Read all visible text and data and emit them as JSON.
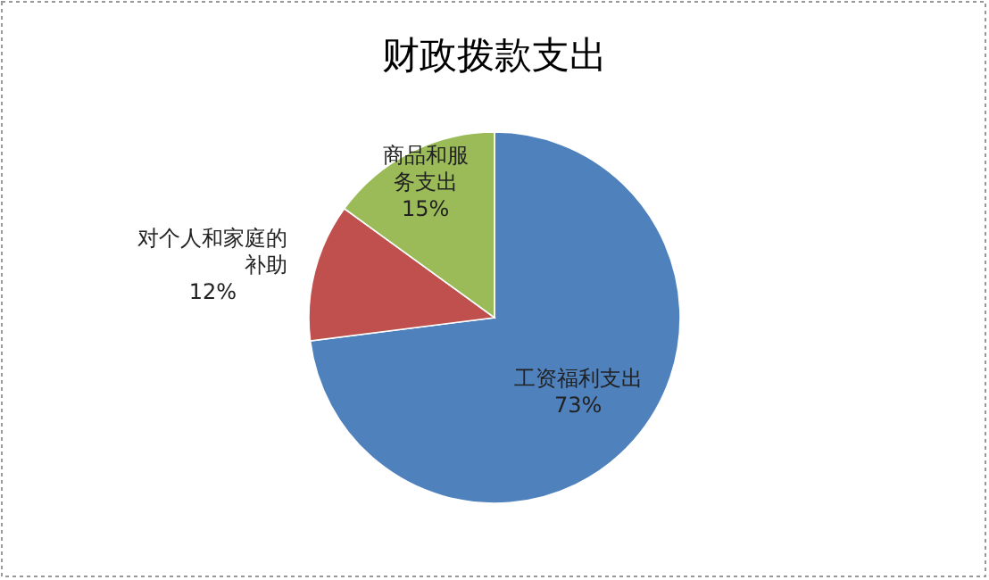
{
  "chart_data": {
    "type": "pie",
    "title": "财政拨款支出",
    "categories": [
      "工资福利支出",
      "对个人和家庭的补助",
      "商品和服务支出"
    ],
    "values": [
      73,
      12,
      15
    ],
    "colors": [
      "#4f81bd",
      "#c0504d",
      "#9bbb59"
    ],
    "value_labels": [
      "73%",
      "12%",
      "15%"
    ]
  }
}
